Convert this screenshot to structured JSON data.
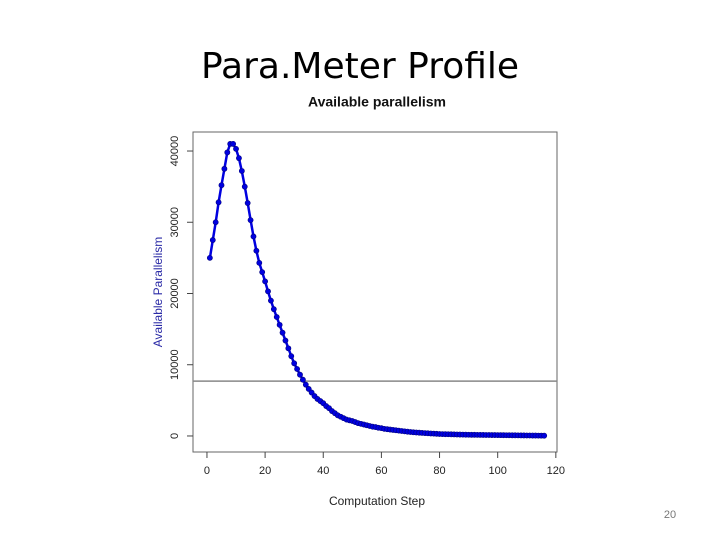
{
  "slide": {
    "title": "Para.Meter Profile",
    "page_number": "20"
  },
  "chart_data": {
    "type": "scatter-line",
    "title": "Available parallelism",
    "x_label": "Computation Step",
    "y_label": "Available Parallelism",
    "color": "#0000e0",
    "y_label_color": "#2a2aa6",
    "reference_line": 7700,
    "reference_color": "#888888",
    "xlim": [
      -4.8,
      120.4
    ],
    "ylim": [
      -2250,
      42670
    ],
    "xticks": [
      0,
      20,
      40,
      60,
      80,
      100,
      120
    ],
    "yticks": [
      0,
      10000,
      20000,
      30000,
      40000
    ],
    "x": [
      1,
      2,
      3,
      4,
      5,
      6,
      7,
      8,
      9,
      10,
      11,
      12,
      13,
      14,
      15,
      16,
      17,
      18,
      19,
      20,
      21,
      22,
      23,
      24,
      25,
      26,
      27,
      28,
      29,
      30,
      31,
      32,
      33,
      34,
      35,
      36,
      37,
      38,
      39,
      40,
      41,
      42,
      43,
      44,
      45,
      46,
      47,
      48,
      49,
      50,
      51,
      52,
      53,
      54,
      55,
      56,
      57,
      58,
      59,
      60,
      61,
      62,
      63,
      64,
      65,
      66,
      67,
      68,
      69,
      70,
      71,
      72,
      73,
      74,
      75,
      76,
      77,
      78,
      79,
      80,
      81,
      82,
      83,
      84,
      85,
      86,
      87,
      88,
      89,
      90,
      91,
      92,
      93,
      94,
      95,
      96,
      97,
      98,
      99,
      100,
      101,
      102,
      103,
      104,
      105,
      106,
      107,
      108,
      109,
      110,
      111,
      112,
      113,
      114,
      115,
      116
    ],
    "values": [
      25000,
      27500,
      30000,
      32800,
      35200,
      37500,
      39800,
      41000,
      41000,
      40300,
      39000,
      37200,
      35000,
      32700,
      30300,
      28000,
      26000,
      24300,
      23000,
      21700,
      20300,
      19000,
      17800,
      16700,
      15600,
      14500,
      13400,
      12300,
      11200,
      10200,
      9400,
      8600,
      7900,
      7200,
      6600,
      6100,
      5600,
      5200,
      4900,
      4600,
      4200,
      3900,
      3500,
      3200,
      2900,
      2700,
      2500,
      2300,
      2200,
      2100,
      1950,
      1800,
      1700,
      1600,
      1500,
      1400,
      1300,
      1250,
      1150,
      1100,
      1000,
      950,
      900,
      850,
      800,
      750,
      700,
      650,
      600,
      560,
      520,
      490,
      460,
      430,
      400,
      380,
      350,
      330,
      300,
      280,
      260,
      250,
      240,
      230,
      220,
      210,
      200,
      190,
      180,
      170,
      165,
      160,
      155,
      150,
      145,
      140,
      135,
      130,
      125,
      120,
      115,
      110,
      105,
      100,
      95,
      90,
      85,
      80,
      75,
      70,
      65,
      60,
      55,
      50,
      45,
      40
    ]
  }
}
